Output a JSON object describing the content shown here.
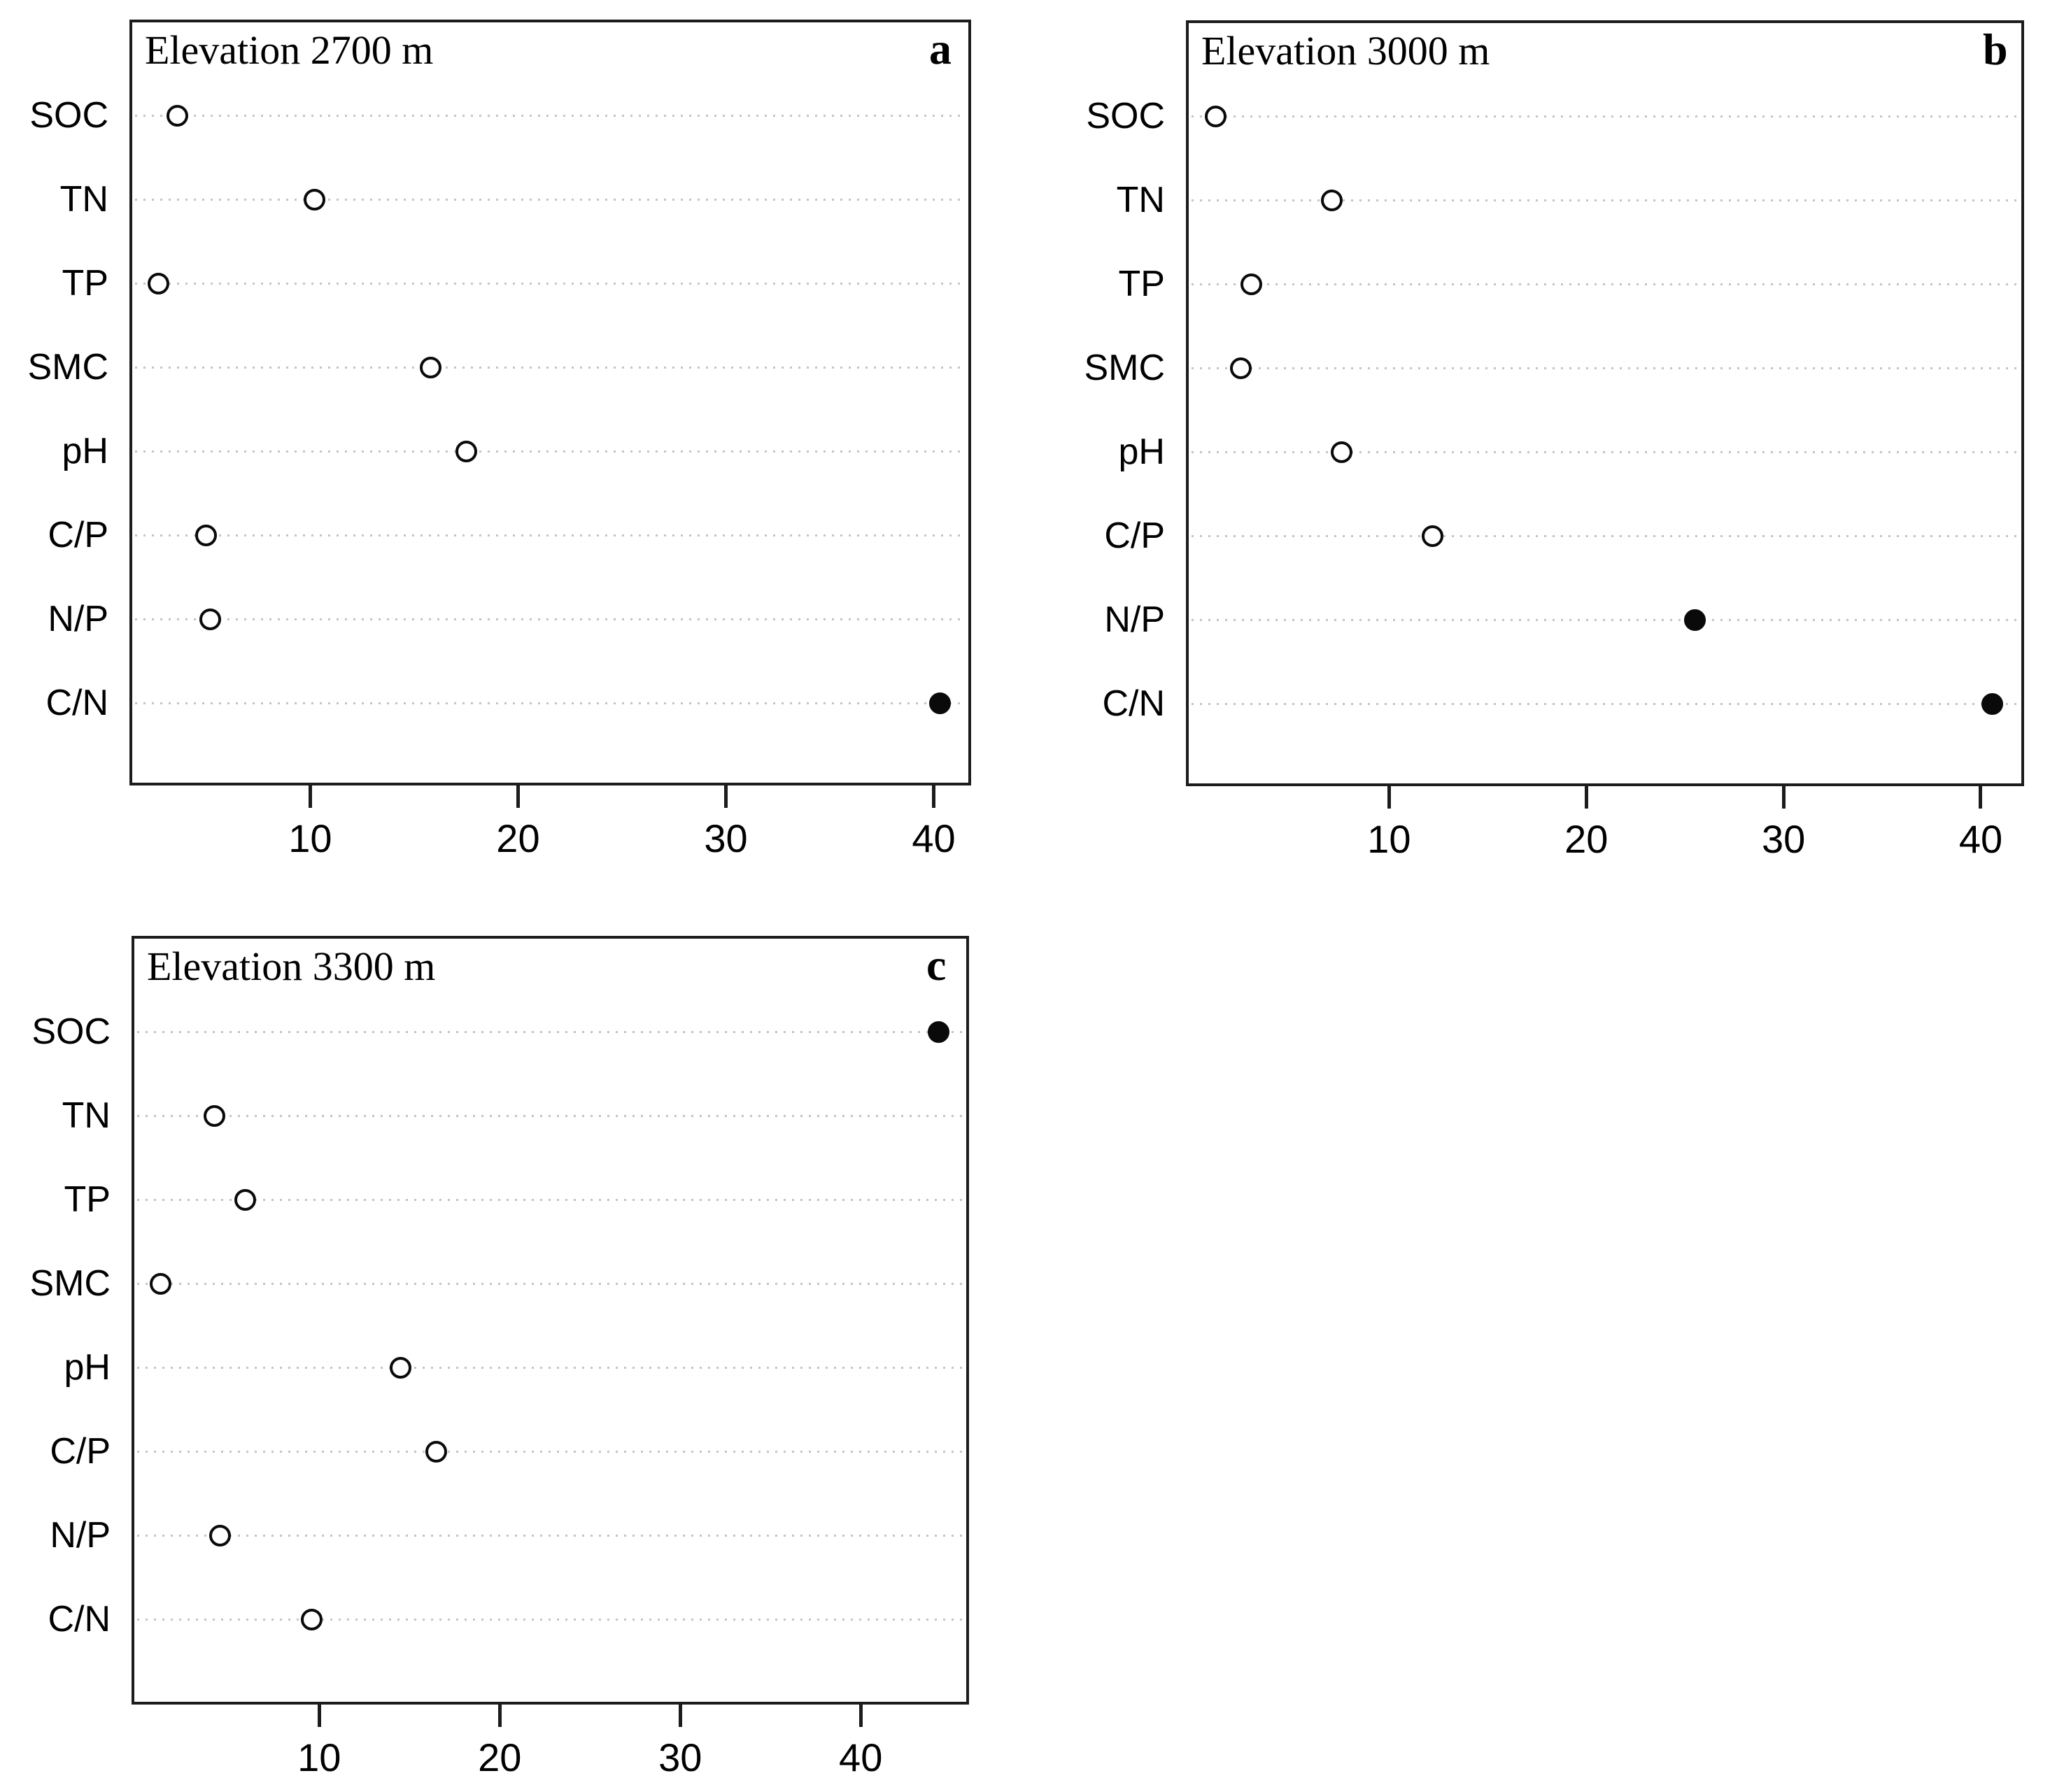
{
  "figure": {
    "background": "#ffffff",
    "frame_color": "#1c1c1c",
    "dot_color": "#0a0a0a",
    "gridline_color": "#c4c4c4",
    "open_marker": "unfilled-circle",
    "closed_marker": "filled-circle"
  },
  "chart_data": [
    {
      "type": "scatter",
      "panel_letter": "a",
      "title": "Elevation 2700 m",
      "categories": [
        "SOC",
        "TN",
        "TP",
        "SMC",
        "pH",
        "C/P",
        "N/P",
        "C/N"
      ],
      "values": [
        3.6,
        10.2,
        2.7,
        15.8,
        17.5,
        5.0,
        5.2,
        40.3
      ],
      "filled": [
        false,
        false,
        false,
        false,
        false,
        false,
        false,
        true
      ],
      "xticks": [
        10,
        20,
        30,
        40
      ],
      "xlim": [
        1.3,
        41.8
      ],
      "xlabel": "",
      "ylabel": "",
      "grid": "dotted-horizontal",
      "legend": "none"
    },
    {
      "type": "scatter",
      "panel_letter": "b",
      "title": "Elevation 3000 m",
      "categories": [
        "SOC",
        "TN",
        "TP",
        "SMC",
        "pH",
        "C/P",
        "N/P",
        "C/N"
      ],
      "values": [
        1.2,
        7.1,
        3.0,
        2.5,
        7.6,
        12.2,
        25.5,
        40.6
      ],
      "filled": [
        false,
        false,
        false,
        false,
        false,
        false,
        true,
        true
      ],
      "xticks": [
        10,
        20,
        30,
        40
      ],
      "xlim": [
        -0.3,
        42.2
      ],
      "xlabel": "",
      "ylabel": "",
      "grid": "dotted-horizontal",
      "legend": "none"
    },
    {
      "type": "scatter",
      "panel_letter": "c",
      "title": "Elevation 3300 m",
      "categories": [
        "SOC",
        "TN",
        "TP",
        "SMC",
        "pH",
        "C/P",
        "N/P",
        "C/N"
      ],
      "values": [
        44.3,
        4.2,
        5.9,
        1.2,
        14.5,
        16.5,
        4.5,
        9.6
      ],
      "filled": [
        true,
        false,
        false,
        false,
        false,
        false,
        false,
        false
      ],
      "xticks": [
        10,
        20,
        30,
        40
      ],
      "xlim": [
        -0.4,
        46.0
      ],
      "xlabel": "",
      "ylabel": "",
      "grid": "dotted-horizontal",
      "legend": "none"
    }
  ]
}
